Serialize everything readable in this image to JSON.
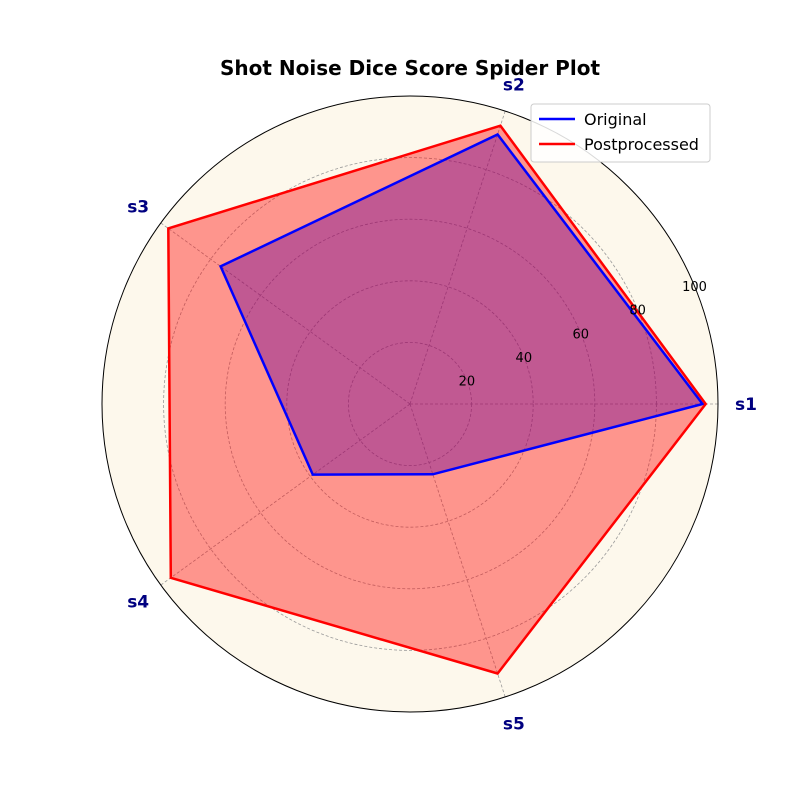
{
  "chart_data": {
    "type": "radar",
    "title": "Shot Noise Dice Score Spider Plot",
    "categories": [
      "s1",
      "s2",
      "s3",
      "s4",
      "s5"
    ],
    "rlim": [
      0,
      100
    ],
    "rticks": [
      20,
      40,
      60,
      80,
      100
    ],
    "grid": true,
    "legend_position": "top-right",
    "background_color": "#fdf8ec",
    "series": [
      {
        "name": "Original",
        "values": [
          95,
          92,
          76,
          39,
          24
        ],
        "color": "#0000ff",
        "fill": "#0000ff",
        "fill_opacity": 0.4
      },
      {
        "name": "Postprocessed",
        "values": [
          96,
          95,
          97,
          96,
          92
        ],
        "color": "#ff0000",
        "fill": "#ff0000",
        "fill_opacity": 0.4
      }
    ]
  }
}
